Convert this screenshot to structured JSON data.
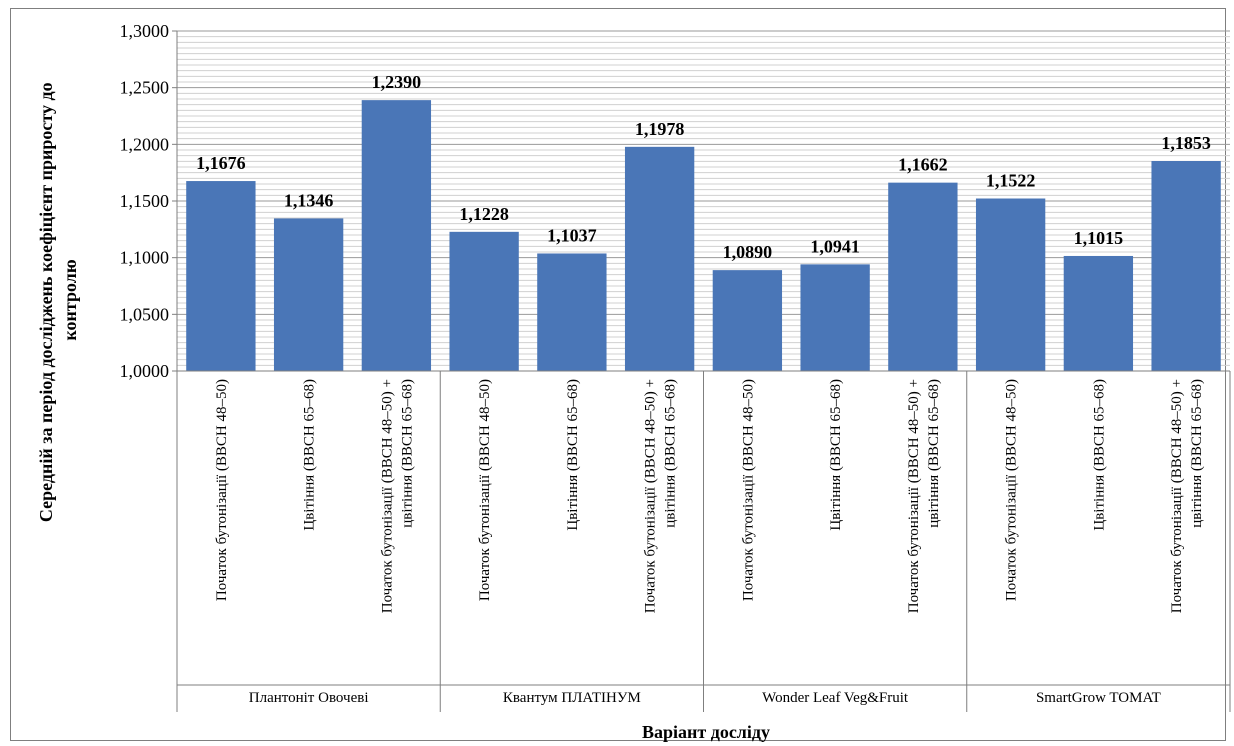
{
  "chart_data": {
    "type": "bar",
    "title": "",
    "ylabel": "Середній за період досліджень коефіцієнт приросту до контролю",
    "ylabel_lines": [
      "Середній за період досліджень коефіцієнт приросту до",
      "контролю"
    ],
    "xlabel": "Варіант досліду",
    "ylim": [
      1.0,
      1.3
    ],
    "yticks": [
      "1,0000",
      "1,0500",
      "1,1000",
      "1,1500",
      "1,2000",
      "1,2500",
      "1,3000"
    ],
    "ytick_values": [
      1.0,
      1.05,
      1.1,
      1.15,
      1.2,
      1.25,
      1.3
    ],
    "grid": true,
    "bar_color": "#4a76b7",
    "groups": [
      {
        "name": "Плантоніт Овочеві",
        "bars": [
          {
            "category": [
              "Початок бутонізації (BBCH 48–50)"
            ],
            "value": 1.1676,
            "label": "1,1676"
          },
          {
            "category": [
              "Цвітіння (BBCH 65–68)"
            ],
            "value": 1.1346,
            "label": "1,1346"
          },
          {
            "category": [
              "Початок бутонізації (BBCH 48–50) +",
              "цвітіння (BBCH 65–68)"
            ],
            "value": 1.239,
            "label": "1,2390"
          }
        ]
      },
      {
        "name": "Квантум ПЛАТІНУМ",
        "bars": [
          {
            "category": [
              "Початок бутонізації (BBCH 48–50)"
            ],
            "value": 1.1228,
            "label": "1,1228"
          },
          {
            "category": [
              "Цвітіння (BBCH 65–68)"
            ],
            "value": 1.1037,
            "label": "1,1037"
          },
          {
            "category": [
              "Початок бутонізації (BBCH 48–50) +",
              "цвітіння (BBCH 65–68)"
            ],
            "value": 1.1978,
            "label": "1,1978"
          }
        ]
      },
      {
        "name": "Wonder Leaf Veg&Fruit",
        "bars": [
          {
            "category": [
              "Початок бутонізації (BBCH 48–50)"
            ],
            "value": 1.089,
            "label": "1,0890"
          },
          {
            "category": [
              "Цвітіння (BBCH 65–68)"
            ],
            "value": 1.0941,
            "label": "1,0941"
          },
          {
            "category": [
              "Початок бутонізації (BBCH 48–50) +",
              "цвітіння (BBCH 65–68)"
            ],
            "value": 1.1662,
            "label": "1,1662"
          }
        ]
      },
      {
        "name": "SmartGrow TOMAT",
        "bars": [
          {
            "category": [
              "Початок бутонізації (BBCH 48–50)"
            ],
            "value": 1.1522,
            "label": "1,1522"
          },
          {
            "category": [
              "Цвітіння (BBCH 65–68)"
            ],
            "value": 1.1015,
            "label": "1,1015"
          },
          {
            "category": [
              "Початок бутонізації (BBCH 48–50) +",
              "цвітіння (BBCH 65–68)"
            ],
            "value": 1.1853,
            "label": "1,1853"
          }
        ]
      }
    ]
  }
}
